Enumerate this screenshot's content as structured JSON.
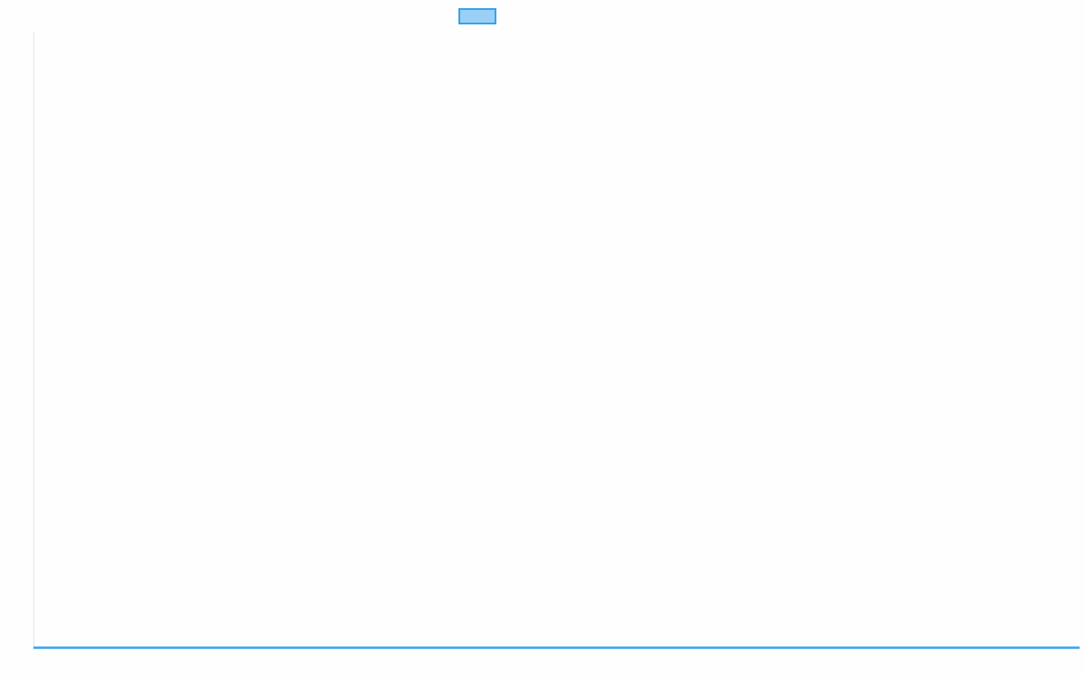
{
  "chart_data": {
    "type": "line",
    "title": "",
    "xlabel": "",
    "ylabel": "",
    "legend": {
      "placement": "top",
      "entries": [
        {
          "name": "",
          "border_color": "#36a2eb",
          "fill_color": "#9ad0f5"
        }
      ]
    },
    "grid": false,
    "series": [
      {
        "values": [],
        "color": "#36a2eb"
      }
    ]
  }
}
